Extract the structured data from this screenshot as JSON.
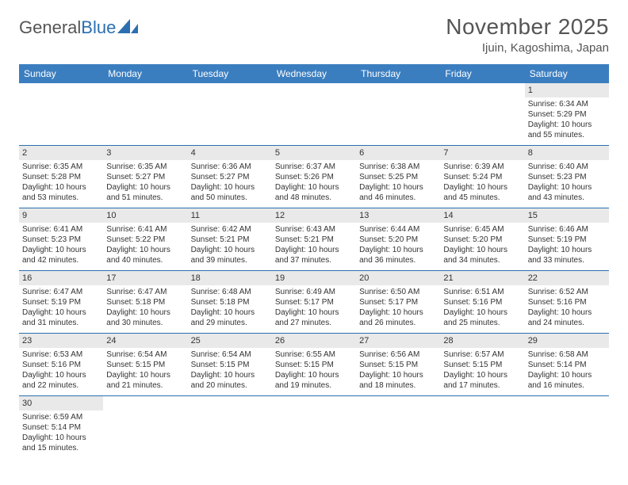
{
  "logo": {
    "text1": "General",
    "text2": "Blue"
  },
  "title": "November 2025",
  "location": "Ijuin, Kagoshima, Japan",
  "colors": {
    "header_bg": "#3b7ec0",
    "header_text": "#ffffff",
    "border": "#2b6fb0",
    "daynum_bg": "#e9e9e9",
    "text": "#333333",
    "title_text": "#555555"
  },
  "day_names": [
    "Sunday",
    "Monday",
    "Tuesday",
    "Wednesday",
    "Thursday",
    "Friday",
    "Saturday"
  ],
  "weeks": [
    [
      {
        "empty": true
      },
      {
        "empty": true
      },
      {
        "empty": true
      },
      {
        "empty": true
      },
      {
        "empty": true
      },
      {
        "empty": true
      },
      {
        "day": "1",
        "sunrise": "Sunrise: 6:34 AM",
        "sunset": "Sunset: 5:29 PM",
        "daylight1": "Daylight: 10 hours",
        "daylight2": "and 55 minutes."
      }
    ],
    [
      {
        "day": "2",
        "sunrise": "Sunrise: 6:35 AM",
        "sunset": "Sunset: 5:28 PM",
        "daylight1": "Daylight: 10 hours",
        "daylight2": "and 53 minutes."
      },
      {
        "day": "3",
        "sunrise": "Sunrise: 6:35 AM",
        "sunset": "Sunset: 5:27 PM",
        "daylight1": "Daylight: 10 hours",
        "daylight2": "and 51 minutes."
      },
      {
        "day": "4",
        "sunrise": "Sunrise: 6:36 AM",
        "sunset": "Sunset: 5:27 PM",
        "daylight1": "Daylight: 10 hours",
        "daylight2": "and 50 minutes."
      },
      {
        "day": "5",
        "sunrise": "Sunrise: 6:37 AM",
        "sunset": "Sunset: 5:26 PM",
        "daylight1": "Daylight: 10 hours",
        "daylight2": "and 48 minutes."
      },
      {
        "day": "6",
        "sunrise": "Sunrise: 6:38 AM",
        "sunset": "Sunset: 5:25 PM",
        "daylight1": "Daylight: 10 hours",
        "daylight2": "and 46 minutes."
      },
      {
        "day": "7",
        "sunrise": "Sunrise: 6:39 AM",
        "sunset": "Sunset: 5:24 PM",
        "daylight1": "Daylight: 10 hours",
        "daylight2": "and 45 minutes."
      },
      {
        "day": "8",
        "sunrise": "Sunrise: 6:40 AM",
        "sunset": "Sunset: 5:23 PM",
        "daylight1": "Daylight: 10 hours",
        "daylight2": "and 43 minutes."
      }
    ],
    [
      {
        "day": "9",
        "sunrise": "Sunrise: 6:41 AM",
        "sunset": "Sunset: 5:23 PM",
        "daylight1": "Daylight: 10 hours",
        "daylight2": "and 42 minutes."
      },
      {
        "day": "10",
        "sunrise": "Sunrise: 6:41 AM",
        "sunset": "Sunset: 5:22 PM",
        "daylight1": "Daylight: 10 hours",
        "daylight2": "and 40 minutes."
      },
      {
        "day": "11",
        "sunrise": "Sunrise: 6:42 AM",
        "sunset": "Sunset: 5:21 PM",
        "daylight1": "Daylight: 10 hours",
        "daylight2": "and 39 minutes."
      },
      {
        "day": "12",
        "sunrise": "Sunrise: 6:43 AM",
        "sunset": "Sunset: 5:21 PM",
        "daylight1": "Daylight: 10 hours",
        "daylight2": "and 37 minutes."
      },
      {
        "day": "13",
        "sunrise": "Sunrise: 6:44 AM",
        "sunset": "Sunset: 5:20 PM",
        "daylight1": "Daylight: 10 hours",
        "daylight2": "and 36 minutes."
      },
      {
        "day": "14",
        "sunrise": "Sunrise: 6:45 AM",
        "sunset": "Sunset: 5:20 PM",
        "daylight1": "Daylight: 10 hours",
        "daylight2": "and 34 minutes."
      },
      {
        "day": "15",
        "sunrise": "Sunrise: 6:46 AM",
        "sunset": "Sunset: 5:19 PM",
        "daylight1": "Daylight: 10 hours",
        "daylight2": "and 33 minutes."
      }
    ],
    [
      {
        "day": "16",
        "sunrise": "Sunrise: 6:47 AM",
        "sunset": "Sunset: 5:19 PM",
        "daylight1": "Daylight: 10 hours",
        "daylight2": "and 31 minutes."
      },
      {
        "day": "17",
        "sunrise": "Sunrise: 6:47 AM",
        "sunset": "Sunset: 5:18 PM",
        "daylight1": "Daylight: 10 hours",
        "daylight2": "and 30 minutes."
      },
      {
        "day": "18",
        "sunrise": "Sunrise: 6:48 AM",
        "sunset": "Sunset: 5:18 PM",
        "daylight1": "Daylight: 10 hours",
        "daylight2": "and 29 minutes."
      },
      {
        "day": "19",
        "sunrise": "Sunrise: 6:49 AM",
        "sunset": "Sunset: 5:17 PM",
        "daylight1": "Daylight: 10 hours",
        "daylight2": "and 27 minutes."
      },
      {
        "day": "20",
        "sunrise": "Sunrise: 6:50 AM",
        "sunset": "Sunset: 5:17 PM",
        "daylight1": "Daylight: 10 hours",
        "daylight2": "and 26 minutes."
      },
      {
        "day": "21",
        "sunrise": "Sunrise: 6:51 AM",
        "sunset": "Sunset: 5:16 PM",
        "daylight1": "Daylight: 10 hours",
        "daylight2": "and 25 minutes."
      },
      {
        "day": "22",
        "sunrise": "Sunrise: 6:52 AM",
        "sunset": "Sunset: 5:16 PM",
        "daylight1": "Daylight: 10 hours",
        "daylight2": "and 24 minutes."
      }
    ],
    [
      {
        "day": "23",
        "sunrise": "Sunrise: 6:53 AM",
        "sunset": "Sunset: 5:16 PM",
        "daylight1": "Daylight: 10 hours",
        "daylight2": "and 22 minutes."
      },
      {
        "day": "24",
        "sunrise": "Sunrise: 6:54 AM",
        "sunset": "Sunset: 5:15 PM",
        "daylight1": "Daylight: 10 hours",
        "daylight2": "and 21 minutes."
      },
      {
        "day": "25",
        "sunrise": "Sunrise: 6:54 AM",
        "sunset": "Sunset: 5:15 PM",
        "daylight1": "Daylight: 10 hours",
        "daylight2": "and 20 minutes."
      },
      {
        "day": "26",
        "sunrise": "Sunrise: 6:55 AM",
        "sunset": "Sunset: 5:15 PM",
        "daylight1": "Daylight: 10 hours",
        "daylight2": "and 19 minutes."
      },
      {
        "day": "27",
        "sunrise": "Sunrise: 6:56 AM",
        "sunset": "Sunset: 5:15 PM",
        "daylight1": "Daylight: 10 hours",
        "daylight2": "and 18 minutes."
      },
      {
        "day": "28",
        "sunrise": "Sunrise: 6:57 AM",
        "sunset": "Sunset: 5:15 PM",
        "daylight1": "Daylight: 10 hours",
        "daylight2": "and 17 minutes."
      },
      {
        "day": "29",
        "sunrise": "Sunrise: 6:58 AM",
        "sunset": "Sunset: 5:14 PM",
        "daylight1": "Daylight: 10 hours",
        "daylight2": "and 16 minutes."
      }
    ],
    [
      {
        "day": "30",
        "sunrise": "Sunrise: 6:59 AM",
        "sunset": "Sunset: 5:14 PM",
        "daylight1": "Daylight: 10 hours",
        "daylight2": "and 15 minutes."
      },
      {
        "empty": true
      },
      {
        "empty": true
      },
      {
        "empty": true
      },
      {
        "empty": true
      },
      {
        "empty": true
      },
      {
        "empty": true
      }
    ]
  ]
}
